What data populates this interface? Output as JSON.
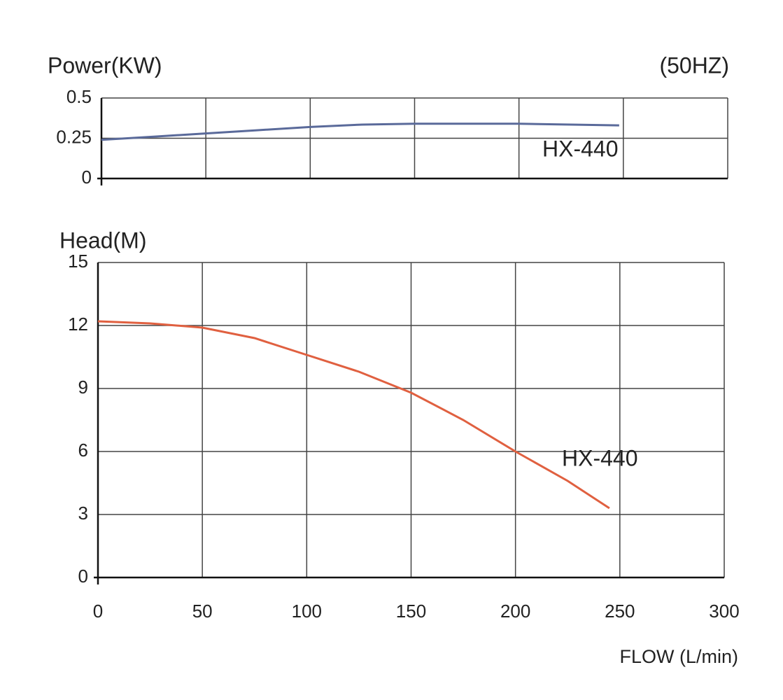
{
  "chart_data": [
    {
      "type": "line",
      "y_label": "Power(KW)",
      "annotation": "(50HZ)",
      "x": [
        0,
        25,
        50,
        75,
        100,
        125,
        150,
        175,
        200,
        225,
        248
      ],
      "series": [
        {
          "name": "HX-440",
          "color": "#5a6a9a",
          "values": [
            0.24,
            0.26,
            0.28,
            0.3,
            0.32,
            0.335,
            0.34,
            0.34,
            0.34,
            0.335,
            0.33
          ]
        }
      ],
      "xlim": [
        0,
        300
      ],
      "xticks": [
        0,
        50,
        100,
        150,
        200,
        250,
        300
      ],
      "xtick_labels": false,
      "ylim": [
        0,
        0.5
      ],
      "yticks": [
        0,
        0.25,
        0.5
      ],
      "grid": true
    },
    {
      "type": "line",
      "y_label": "Head(M)",
      "x_label": "FLOW (L/min)",
      "x": [
        0,
        25,
        50,
        75,
        100,
        125,
        150,
        175,
        200,
        225,
        245
      ],
      "series": [
        {
          "name": "HX-440",
          "color": "#e06040",
          "values": [
            12.2,
            12.1,
            11.9,
            11.4,
            10.6,
            9.8,
            8.8,
            7.5,
            6.0,
            4.6,
            3.3
          ]
        }
      ],
      "xlim": [
        0,
        300
      ],
      "xticks": [
        0,
        50,
        100,
        150,
        200,
        250,
        300
      ],
      "xtick_labels": true,
      "ylim": [
        0,
        15
      ],
      "yticks": [
        0,
        3,
        6,
        9,
        12,
        15
      ],
      "grid": true
    }
  ]
}
